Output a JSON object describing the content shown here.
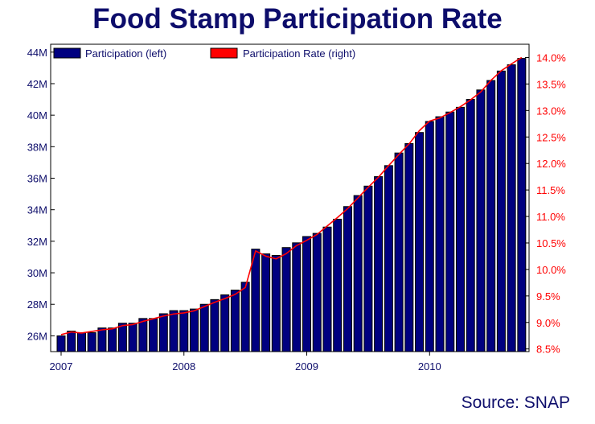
{
  "title": "Food Stamp Participation Rate",
  "source": "Source: SNAP",
  "colors": {
    "title": "#0d0d6b",
    "bar_fill": "#000080",
    "bar_edge": "#000000",
    "line": "#ff0000",
    "left_axis": "#0d0d6b",
    "right_axis": "#ff0000"
  },
  "chart_data": {
    "type": "bar",
    "legend_position": "top-left",
    "grid": false,
    "x_tick_labels": [
      "2007",
      "2008",
      "2009",
      "2010"
    ],
    "y_left": {
      "ylim": [
        25.0,
        44.5
      ],
      "ticks": [
        26,
        28,
        30,
        32,
        34,
        36,
        38,
        40,
        42,
        44
      ],
      "tick_labels": [
        "26M",
        "28M",
        "30M",
        "32M",
        "34M",
        "36M",
        "38M",
        "40M",
        "42M",
        "44M"
      ]
    },
    "y_right": {
      "ylim": [
        8.45,
        14.25
      ],
      "ticks": [
        8.5,
        9.0,
        9.5,
        10.0,
        10.5,
        11.0,
        11.5,
        12.0,
        12.5,
        13.0,
        13.5,
        14.0
      ],
      "tick_labels": [
        "8.5%",
        "9.0%",
        "9.5%",
        "10.0%",
        "10.5%",
        "11.0%",
        "11.5%",
        "12.0%",
        "12.5%",
        "13.0%",
        "13.5%",
        "14.0%"
      ]
    },
    "categories": [
      "2007-01",
      "2007-02",
      "2007-03",
      "2007-04",
      "2007-05",
      "2007-06",
      "2007-07",
      "2007-08",
      "2007-09",
      "2007-10",
      "2007-11",
      "2007-12",
      "2008-01",
      "2008-02",
      "2008-03",
      "2008-04",
      "2008-05",
      "2008-06",
      "2008-07",
      "2008-08",
      "2008-09",
      "2008-10",
      "2008-11",
      "2008-12",
      "2009-01",
      "2009-02",
      "2009-03",
      "2009-04",
      "2009-05",
      "2009-06",
      "2009-07",
      "2009-08",
      "2009-09",
      "2009-10",
      "2009-11",
      "2009-12",
      "2010-01",
      "2010-02",
      "2010-03",
      "2010-04",
      "2010-05",
      "2010-06",
      "2010-07",
      "2010-08",
      "2010-09",
      "2010-10"
    ],
    "series": [
      {
        "name": "Participation (left)",
        "type": "bar",
        "axis": "left",
        "values": [
          26.0,
          26.3,
          26.2,
          26.2,
          26.5,
          26.5,
          26.8,
          26.8,
          27.1,
          27.1,
          27.4,
          27.6,
          27.6,
          27.7,
          28.0,
          28.3,
          28.6,
          28.9,
          29.4,
          31.5,
          31.2,
          31.1,
          31.6,
          31.9,
          32.3,
          32.5,
          32.9,
          33.4,
          34.2,
          34.9,
          35.5,
          36.1,
          36.8,
          37.6,
          38.2,
          38.9,
          39.6,
          39.9,
          40.2,
          40.5,
          41.0,
          41.6,
          42.2,
          42.8,
          43.2,
          43.6
        ]
      },
      {
        "name": "Participation Rate (right)",
        "type": "line",
        "axis": "right",
        "values": [
          8.77,
          8.82,
          8.8,
          8.83,
          8.86,
          8.88,
          8.94,
          8.96,
          9.02,
          9.07,
          9.12,
          9.16,
          9.18,
          9.22,
          9.3,
          9.38,
          9.45,
          9.53,
          9.66,
          10.35,
          10.25,
          10.2,
          10.3,
          10.45,
          10.55,
          10.66,
          10.82,
          10.98,
          11.15,
          11.35,
          11.55,
          11.74,
          11.96,
          12.17,
          12.37,
          12.62,
          12.8,
          12.86,
          12.96,
          13.07,
          13.2,
          13.35,
          13.57,
          13.75,
          13.88,
          14.0
        ]
      }
    ]
  }
}
